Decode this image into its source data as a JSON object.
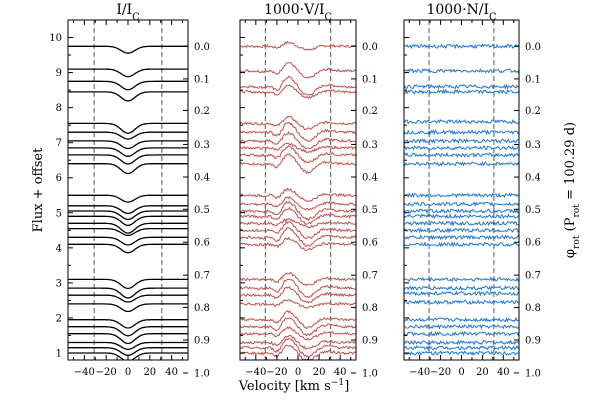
{
  "chart_data": [
    {
      "type": "line",
      "title": "I/I",
      "title_sub": "C",
      "xlabel": "Velocity [km s",
      "xlabel_sup": "−1",
      "xlabel_close": "]",
      "ylabel": "Flux + offset",
      "y2label": "φ",
      "y2label_sub": "rot",
      "y2label_rest": " (P",
      "y2label_rest_sub": "rot",
      "y2label_end": " = 100.29 d)",
      "xlim": [
        -55,
        55
      ],
      "ylim": [
        0.8,
        10.5
      ],
      "x_ticks": [
        -40,
        -20,
        0,
        20,
        40
      ],
      "y_ticks": [
        1,
        2,
        3,
        4,
        5,
        6,
        7,
        8,
        9,
        10
      ],
      "y2_ticks": [
        {
          "label": "0.0",
          "y": 9.75
        },
        {
          "label": "0.1",
          "y": 8.82
        },
        {
          "label": "0.2",
          "y": 7.92
        },
        {
          "label": "0.3",
          "y": 6.95
        },
        {
          "label": "0.4",
          "y": 6.02
        },
        {
          "label": "0.5",
          "y": 5.1
        },
        {
          "label": "0.6",
          "y": 4.16
        },
        {
          "label": "0.7",
          "y": 3.22
        },
        {
          "label": "0.8",
          "y": 2.3
        },
        {
          "label": "0.9",
          "y": 1.37
        },
        {
          "label": "1.0",
          "y": 0.43
        }
      ],
      "vlines": [
        -31,
        31
      ],
      "series_color": "#000000",
      "continuum_offsets": [
        9.75,
        9.1,
        8.75,
        8.45,
        7.55,
        7.3,
        7.05,
        6.85,
        6.65,
        6.4,
        5.5,
        5.2,
        5.05,
        4.9,
        4.7,
        4.55,
        4.3,
        4.1,
        3.1,
        2.85,
        2.65,
        2.4,
        1.95,
        1.75,
        1.55,
        1.3,
        1.15,
        1.0
      ],
      "line_depth": 0.28,
      "line_width_kms": 14
    },
    {
      "type": "line",
      "title": "1000·V/I",
      "title_sub": "C",
      "xlim": [
        -55,
        55
      ],
      "ylim": [
        0.8,
        10.5
      ],
      "x_ticks": [
        -40,
        -20,
        0,
        20,
        40
      ],
      "vlines": [
        -31,
        31
      ],
      "series_color": "#c0504d",
      "continuum_offsets": [
        9.75,
        9.05,
        8.6,
        8.45,
        7.55,
        7.3,
        7.05,
        6.85,
        6.65,
        6.4,
        5.5,
        5.25,
        5.05,
        4.9,
        4.7,
        4.5,
        4.3,
        4.1,
        3.1,
        2.85,
        2.65,
        2.4,
        1.95,
        1.75,
        1.55,
        1.3,
        1.15,
        1.0
      ],
      "signature_amplitude": 0.3
    },
    {
      "type": "line",
      "title": "1000·N/I",
      "title_sub": "C",
      "xlim": [
        -55,
        55
      ],
      "ylim": [
        0.8,
        10.5
      ],
      "x_ticks": [
        -40,
        -20,
        0,
        20,
        40
      ],
      "vlines": [
        -31,
        31
      ],
      "series_color": "#1f77d4",
      "continuum_offsets": [
        9.75,
        9.05,
        8.6,
        8.45,
        7.6,
        7.3,
        7.05,
        6.85,
        6.65,
        6.4,
        5.5,
        5.25,
        5.05,
        4.9,
        4.7,
        4.5,
        4.3,
        4.1,
        3.1,
        2.85,
        2.7,
        2.45,
        1.95,
        1.75,
        1.55,
        1.3,
        1.15,
        1.0
      ],
      "noise_amplitude": 0.05
    }
  ],
  "tick_labels_x": [
    "−40",
    "−20",
    "0",
    "20",
    "40"
  ]
}
